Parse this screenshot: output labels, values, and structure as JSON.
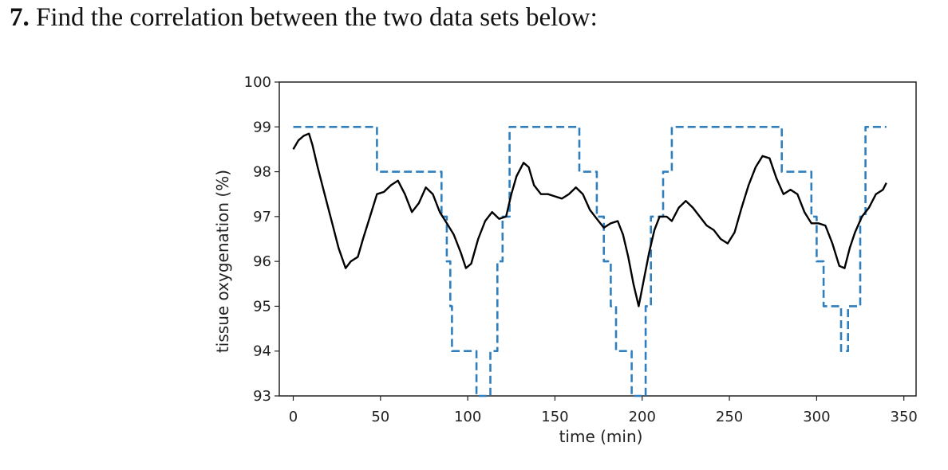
{
  "question": {
    "number": "7.",
    "text": "Find the correlation between the two data sets below:"
  },
  "chart_data": {
    "type": "line",
    "title": "",
    "xlabel": "time (min)",
    "ylabel": "tissue oxygenation (%)",
    "xlim": [
      -8,
      357
    ],
    "ylim": [
      93,
      100
    ],
    "xticks": [
      0,
      50,
      100,
      150,
      200,
      250,
      300,
      350
    ],
    "yticks": [
      93,
      94,
      95,
      96,
      97,
      98,
      99,
      100
    ],
    "grid": false,
    "legend": "none",
    "series": [
      {
        "style": "dashed",
        "color": "#2f7fbf",
        "step": true,
        "points": [
          [
            0,
            99
          ],
          [
            48,
            99
          ],
          [
            48,
            98
          ],
          [
            85,
            98
          ],
          [
            85,
            97
          ],
          [
            88,
            97
          ],
          [
            88,
            96
          ],
          [
            90,
            96
          ],
          [
            90,
            95
          ],
          [
            91,
            95
          ],
          [
            91,
            94
          ],
          [
            105,
            94
          ],
          [
            105,
            93
          ],
          [
            113,
            93
          ],
          [
            113,
            94
          ],
          [
            117,
            94
          ],
          [
            117,
            96
          ],
          [
            120,
            96
          ],
          [
            120,
            97
          ],
          [
            124,
            97
          ],
          [
            124,
            99
          ],
          [
            164,
            99
          ],
          [
            164,
            98
          ],
          [
            174,
            98
          ],
          [
            174,
            97
          ],
          [
            178,
            97
          ],
          [
            178,
            96
          ],
          [
            182,
            96
          ],
          [
            182,
            95
          ],
          [
            185,
            95
          ],
          [
            185,
            94
          ],
          [
            194,
            94
          ],
          [
            194,
            93
          ],
          [
            202,
            93
          ],
          [
            202,
            95
          ],
          [
            205,
            95
          ],
          [
            205,
            97
          ],
          [
            212,
            97
          ],
          [
            212,
            98
          ],
          [
            217,
            98
          ],
          [
            217,
            99
          ],
          [
            280,
            99
          ],
          [
            280,
            98
          ],
          [
            297,
            98
          ],
          [
            297,
            97
          ],
          [
            300,
            97
          ],
          [
            300,
            96
          ],
          [
            304,
            96
          ],
          [
            304,
            95
          ],
          [
            314,
            95
          ],
          [
            314,
            94
          ],
          [
            318,
            94
          ],
          [
            318,
            95
          ],
          [
            325,
            95
          ],
          [
            325,
            97
          ],
          [
            328,
            97
          ],
          [
            328,
            99
          ],
          [
            340,
            99
          ]
        ]
      },
      {
        "style": "solid",
        "color": "#000000",
        "step": false,
        "points": [
          [
            0,
            98.5
          ],
          [
            3,
            98.7
          ],
          [
            6,
            98.8
          ],
          [
            9,
            98.85
          ],
          [
            11,
            98.6
          ],
          [
            14,
            98.1
          ],
          [
            18,
            97.5
          ],
          [
            22,
            96.9
          ],
          [
            26,
            96.3
          ],
          [
            30,
            95.85
          ],
          [
            33,
            96.0
          ],
          [
            37,
            96.1
          ],
          [
            40,
            96.5
          ],
          [
            44,
            97.0
          ],
          [
            48,
            97.5
          ],
          [
            52,
            97.55
          ],
          [
            56,
            97.7
          ],
          [
            60,
            97.8
          ],
          [
            64,
            97.5
          ],
          [
            68,
            97.1
          ],
          [
            72,
            97.3
          ],
          [
            76,
            97.65
          ],
          [
            80,
            97.5
          ],
          [
            84,
            97.1
          ],
          [
            88,
            96.85
          ],
          [
            92,
            96.6
          ],
          [
            96,
            96.2
          ],
          [
            99,
            95.85
          ],
          [
            102,
            95.95
          ],
          [
            106,
            96.5
          ],
          [
            110,
            96.9
          ],
          [
            114,
            97.1
          ],
          [
            118,
            96.95
          ],
          [
            122,
            97.0
          ],
          [
            125,
            97.5
          ],
          [
            128,
            97.9
          ],
          [
            132,
            98.2
          ],
          [
            135,
            98.1
          ],
          [
            138,
            97.7
          ],
          [
            142,
            97.5
          ],
          [
            146,
            97.5
          ],
          [
            150,
            97.45
          ],
          [
            154,
            97.4
          ],
          [
            158,
            97.5
          ],
          [
            162,
            97.65
          ],
          [
            166,
            97.5
          ],
          [
            170,
            97.15
          ],
          [
            174,
            96.95
          ],
          [
            178,
            96.75
          ],
          [
            182,
            96.85
          ],
          [
            186,
            96.9
          ],
          [
            189,
            96.6
          ],
          [
            192,
            96.1
          ],
          [
            195,
            95.5
          ],
          [
            198,
            95.0
          ],
          [
            201,
            95.6
          ],
          [
            204,
            96.2
          ],
          [
            207,
            96.7
          ],
          [
            210,
            97.0
          ],
          [
            214,
            97.0
          ],
          [
            217,
            96.9
          ],
          [
            221,
            97.2
          ],
          [
            225,
            97.35
          ],
          [
            229,
            97.2
          ],
          [
            233,
            97.0
          ],
          [
            237,
            96.8
          ],
          [
            241,
            96.7
          ],
          [
            245,
            96.5
          ],
          [
            249,
            96.4
          ],
          [
            253,
            96.65
          ],
          [
            257,
            97.2
          ],
          [
            261,
            97.7
          ],
          [
            265,
            98.1
          ],
          [
            269,
            98.35
          ],
          [
            273,
            98.3
          ],
          [
            277,
            97.85
          ],
          [
            281,
            97.5
          ],
          [
            285,
            97.6
          ],
          [
            289,
            97.5
          ],
          [
            293,
            97.1
          ],
          [
            297,
            96.85
          ],
          [
            301,
            96.85
          ],
          [
            305,
            96.8
          ],
          [
            309,
            96.4
          ],
          [
            313,
            95.9
          ],
          [
            316,
            95.85
          ],
          [
            319,
            96.3
          ],
          [
            322,
            96.65
          ],
          [
            326,
            97.0
          ],
          [
            330,
            97.2
          ],
          [
            334,
            97.5
          ],
          [
            338,
            97.6
          ],
          [
            340,
            97.75
          ]
        ]
      }
    ]
  }
}
